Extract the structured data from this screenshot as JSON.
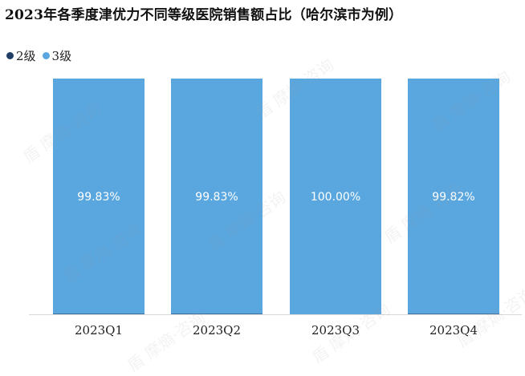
{
  "chart_data": {
    "type": "bar",
    "title": "2023年各季度津优力不同等级医院销售额占比（哈尔滨市为例）",
    "categories": [
      "2023Q1",
      "2023Q2",
      "2023Q3",
      "2023Q4"
    ],
    "series": [
      {
        "name": "2级",
        "color": "#1f3f66",
        "values": [
          0.17,
          0.17,
          0.0,
          0.18
        ]
      },
      {
        "name": "3级",
        "color": "#5aa7e0",
        "values": [
          99.83,
          99.83,
          100.0,
          99.82
        ],
        "labels": [
          "99.83%",
          "99.83%",
          "100.00%",
          "99.82%"
        ]
      }
    ],
    "stacked": true,
    "ylim": [
      0,
      100
    ],
    "legend_position": "top-left",
    "grid": false
  },
  "watermark": {
    "text": "盾 摩熵·咨询"
  }
}
